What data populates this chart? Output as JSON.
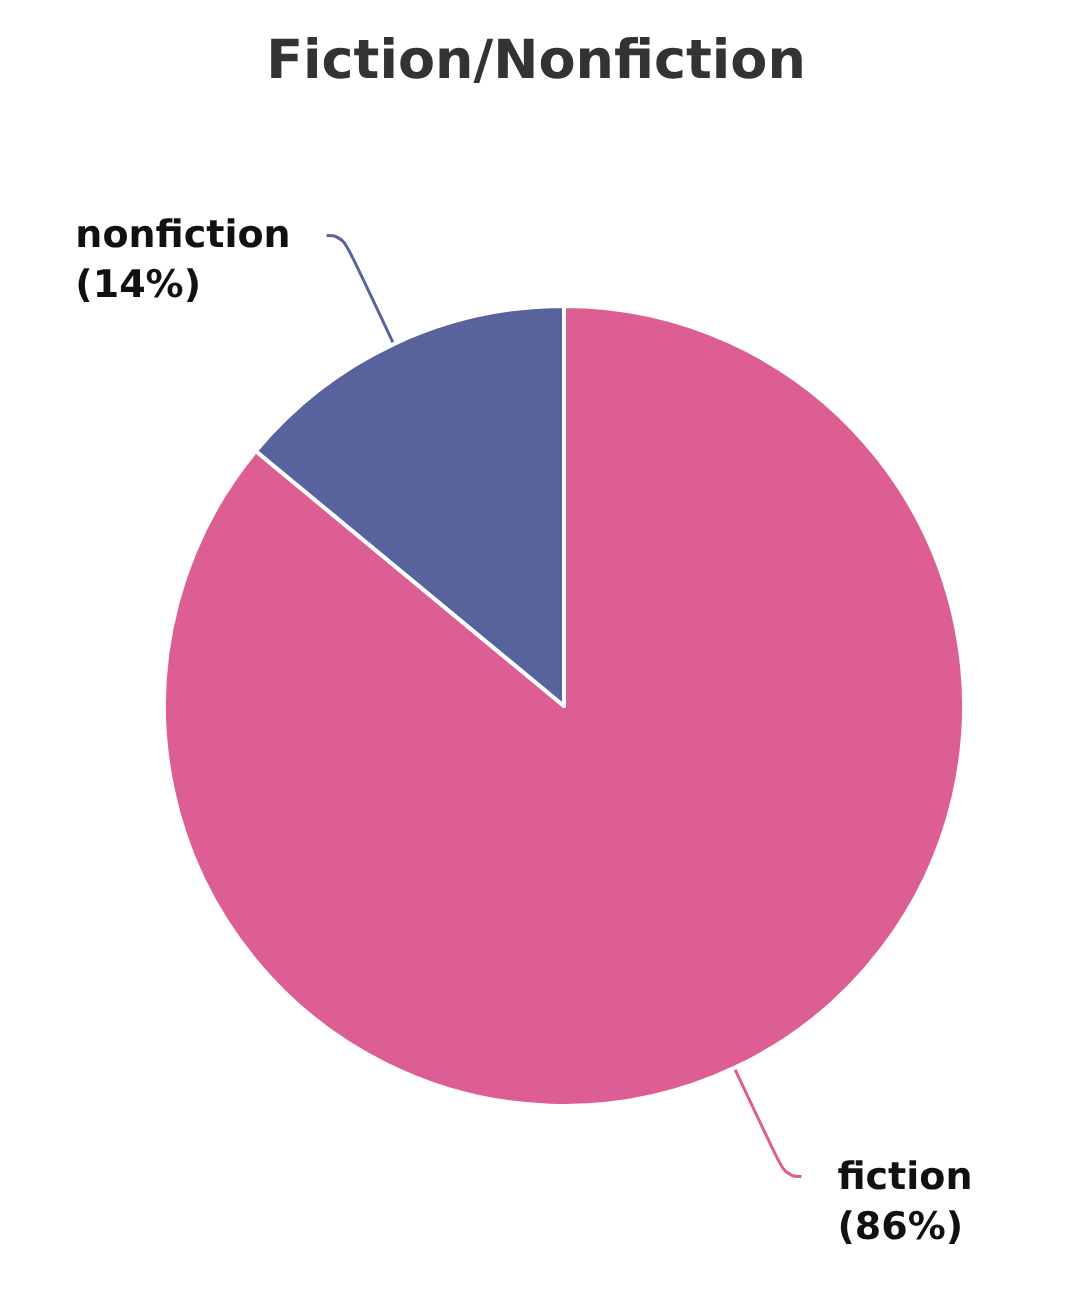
{
  "chart_data": {
    "type": "pie",
    "title": "Fiction/Nonfiction",
    "categories": [
      "fiction",
      "nonfiction"
    ],
    "values": [
      86,
      14
    ],
    "colors": [
      "#dd5e92",
      "#58629d"
    ],
    "value_labels": [
      "(86%)",
      "(14%)"
    ],
    "legend": false
  }
}
